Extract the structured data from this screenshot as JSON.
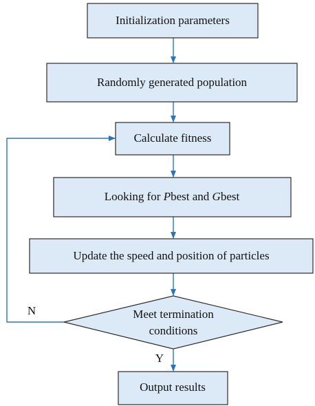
{
  "nodes": [
    {
      "label": "Initialization parameters"
    },
    {
      "label": "Randomly generated population"
    },
    {
      "label": "Calculate fitness"
    },
    {
      "label_parts": [
        "Looking for ",
        "P",
        "best and ",
        "G",
        "best"
      ]
    },
    {
      "label": "Update the speed and position of particles"
    },
    {
      "label_lines": [
        "Meet termination",
        "conditions"
      ]
    },
    {
      "label": "Output results"
    }
  ],
  "edges": [
    {
      "label": "N"
    },
    {
      "label": "Y"
    }
  ]
}
